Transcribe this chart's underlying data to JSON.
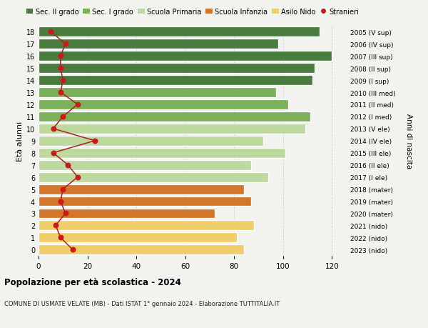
{
  "ages": [
    18,
    17,
    16,
    15,
    14,
    13,
    12,
    11,
    10,
    9,
    8,
    7,
    6,
    5,
    4,
    3,
    2,
    1,
    0
  ],
  "years": [
    "2005 (V sup)",
    "2006 (IV sup)",
    "2007 (III sup)",
    "2008 (II sup)",
    "2009 (I sup)",
    "2010 (III med)",
    "2011 (II med)",
    "2012 (I med)",
    "2013 (V ele)",
    "2014 (IV ele)",
    "2015 (III ele)",
    "2016 (II ele)",
    "2017 (I ele)",
    "2018 (mater)",
    "2019 (mater)",
    "2020 (mater)",
    "2021 (nido)",
    "2022 (nido)",
    "2023 (nido)"
  ],
  "bar_values": [
    115,
    98,
    120,
    113,
    112,
    97,
    102,
    111,
    109,
    92,
    101,
    87,
    94,
    84,
    87,
    72,
    88,
    81,
    84
  ],
  "bar_colors": [
    "#4a7c3f",
    "#4a7c3f",
    "#4a7c3f",
    "#4a7c3f",
    "#4a7c3f",
    "#7db05a",
    "#7db05a",
    "#7db05a",
    "#bdd9a0",
    "#bdd9a0",
    "#bdd9a0",
    "#bdd9a0",
    "#bdd9a0",
    "#d4762a",
    "#d4762a",
    "#d4762a",
    "#f0ce6a",
    "#f0ce6a",
    "#f0ce6a"
  ],
  "stranieri_values": [
    5,
    11,
    9,
    9,
    10,
    9,
    16,
    10,
    6,
    23,
    6,
    12,
    16,
    10,
    9,
    11,
    7,
    9,
    14
  ],
  "legend_labels": [
    "Sec. II grado",
    "Sec. I grado",
    "Scuola Primaria",
    "Scuola Infanzia",
    "Asilo Nido",
    "Stranieri"
  ],
  "legend_colors": [
    "#4a7c3f",
    "#7db05a",
    "#bdd9a0",
    "#d4762a",
    "#f0ce6a",
    "#cc1a1a"
  ],
  "ylabel_left": "Età alunni",
  "ylabel_right": "Anni di nascita",
  "title_main": "Popolazione per età scolastica - 2024",
  "title_sub": "COMUNE DI USMATE VELATE (MB) - Dati ISTAT 1° gennaio 2024 - Elaborazione TUTTITALIA.IT",
  "xlim": [
    0,
    126
  ],
  "background_color": "#f2f2ef",
  "grid_color": "#d0d0d0",
  "stranieri_color": "#cc1a1a",
  "stranieri_line_color": "#aa2222"
}
